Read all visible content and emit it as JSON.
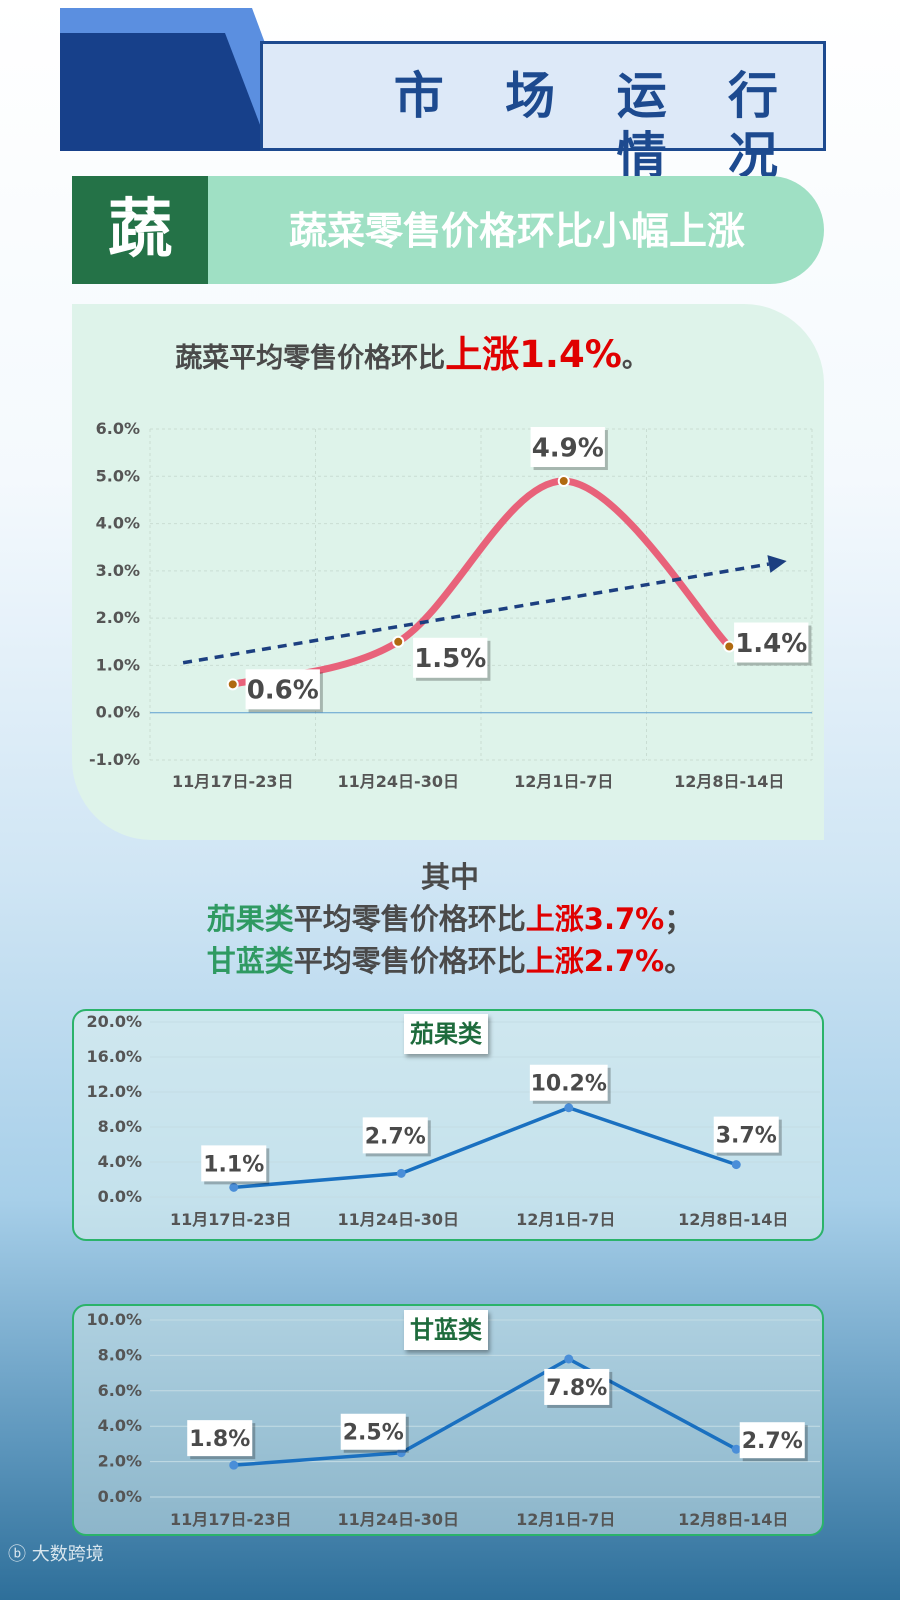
{
  "header": {
    "title": "市 场 运 行 情 况"
  },
  "banner": {
    "char": "蔬",
    "subtitle": "蔬菜零售价格环比小幅上涨"
  },
  "main_summary": {
    "prefix": "蔬菜平均零售价格环比",
    "highlight": "上涨1.4%",
    "suffix": "。"
  },
  "mid_text": {
    "intro": "其中",
    "line1": {
      "category": "茄果类",
      "middle": "平均零售价格环比",
      "highlight": "上涨3.7%",
      "suffix": "；"
    },
    "line2": {
      "category": "甘蓝类",
      "middle": "平均零售价格环比",
      "highlight": "上涨2.7%",
      "suffix": "。"
    }
  },
  "watermark": "大数跨境",
  "colors": {
    "main_line": "#e8627a",
    "trend": "#1c3f80",
    "sub_line": "#1a70c0",
    "panel_green": "#2bb36a",
    "highlight_red": "#e00000"
  },
  "chart_data": [
    {
      "type": "line",
      "categories": [
        "11月17日-23日",
        "11月24日-30日",
        "12月1日-7日",
        "12月8日-14日"
      ],
      "values": [
        0.6,
        1.5,
        4.9,
        1.4
      ],
      "data_labels": [
        "0.6%",
        "1.5%",
        "4.9%",
        "1.4%"
      ],
      "y_ticks": [
        "-1.0%",
        "0.0%",
        "1.0%",
        "2.0%",
        "3.0%",
        "4.0%",
        "5.0%",
        "6.0%"
      ],
      "ylim": [
        -1.0,
        6.0
      ],
      "trend_line": true,
      "grid": true
    },
    {
      "type": "line",
      "title": "茄果类",
      "categories": [
        "11月17日-23日",
        "11月24日-30日",
        "12月1日-7日",
        "12月8日-14日"
      ],
      "values": [
        1.1,
        2.7,
        10.2,
        3.7
      ],
      "data_labels": [
        "1.1%",
        "2.7%",
        "10.2%",
        "3.7%"
      ],
      "y_ticks": [
        "0.0%",
        "4.0%",
        "8.0%",
        "12.0%",
        "16.0%",
        "20.0%"
      ],
      "ylim": [
        0,
        20
      ]
    },
    {
      "type": "line",
      "title": "甘蓝类",
      "categories": [
        "11月17日-23日",
        "11月24日-30日",
        "12月1日-7日",
        "12月8日-14日"
      ],
      "values": [
        1.8,
        2.5,
        7.8,
        2.7
      ],
      "data_labels": [
        "1.8%",
        "2.5%",
        "7.8%",
        "2.7%"
      ],
      "y_ticks": [
        "0.0%",
        "2.0%",
        "4.0%",
        "6.0%",
        "8.0%",
        "10.0%"
      ],
      "ylim": [
        0,
        10
      ]
    }
  ]
}
